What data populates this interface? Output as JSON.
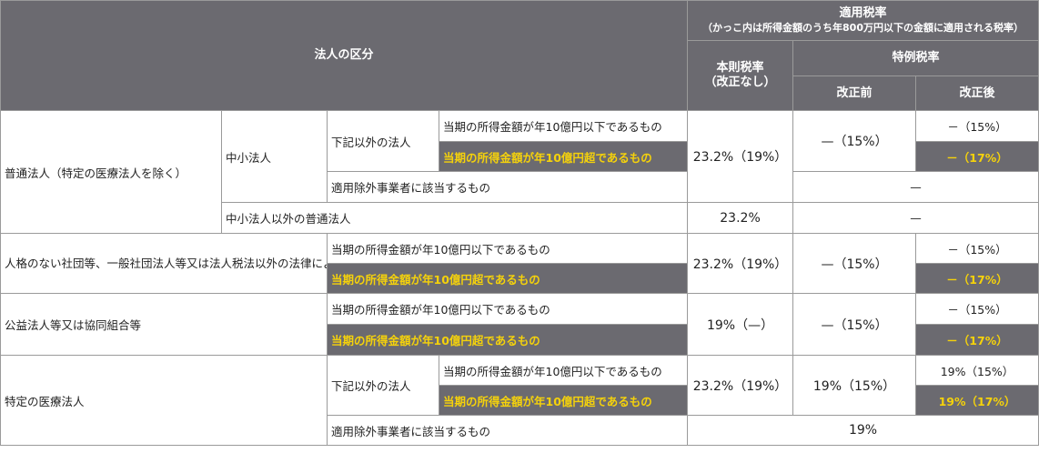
{
  "header": {
    "category": "法人の区分",
    "applied_rate": "適用税率",
    "applied_rate_note": "（かっこ内は所得金額のうち年800万円以下の金額に適用される税率）",
    "base_rate": "本則税率",
    "base_rate_note": "（改正なし）",
    "special_rate": "特例税率",
    "before": "改正前",
    "after": "改正後"
  },
  "general": {
    "label": "普通法人（特定の医療法人を除く）",
    "sme": "中小法人",
    "other_than_below": "下記以外の法人",
    "income_le": "当期の所得金額が年10億円以下であるもの",
    "income_gt": "当期の所得金額が年10億円超であるもの",
    "base": "23.2%（19%）",
    "before": "—（15%）",
    "after_le": "－（15%）",
    "after_gt": "－（17%）",
    "excluded": "適用除外事業者に該当するもの",
    "excluded_special": "—",
    "non_sme": "中小法人以外の普通法人",
    "non_sme_base": "23.2%",
    "non_sme_special": "—"
  },
  "unincorporated": {
    "label": "人格のない社団等、一般社団法人等又は法人税法以外の法律によって公益法人等とみなされているもの",
    "income_le": "当期の所得金額が年10億円以下であるもの",
    "income_gt": "当期の所得金額が年10億円超であるもの",
    "base": "23.2%（19%）",
    "before": "—（15%）",
    "after_le": "－（15%）",
    "after_gt": "－（17%）"
  },
  "public_interest": {
    "label": "公益法人等又は協同組合等",
    "income_le": "当期の所得金額が年10億円以下であるもの",
    "income_gt": "当期の所得金額が年10億円超であるもの",
    "base": "19%（—）",
    "before": "—（15%）",
    "after_le": "－（15%）",
    "after_gt": "－（17%）"
  },
  "medical": {
    "label": "特定の医療法人",
    "other_than_below": "下記以外の法人",
    "income_le": "当期の所得金額が年10億円以下であるもの",
    "income_gt": "当期の所得金額が年10億円超であるもの",
    "base": "23.2%（19%）",
    "before": "19%（15%）",
    "after_le": "19%（15%）",
    "after_gt": "19%（17%）",
    "excluded": "適用除外事業者に該当するもの",
    "excluded_rate": "19%"
  },
  "colors": {
    "header_bg": "#6b6a70",
    "header_text": "#ffffff",
    "highlight_bg": "#6b6a70",
    "highlight_text": "#f5d20b",
    "border": "#9a9a9a"
  }
}
